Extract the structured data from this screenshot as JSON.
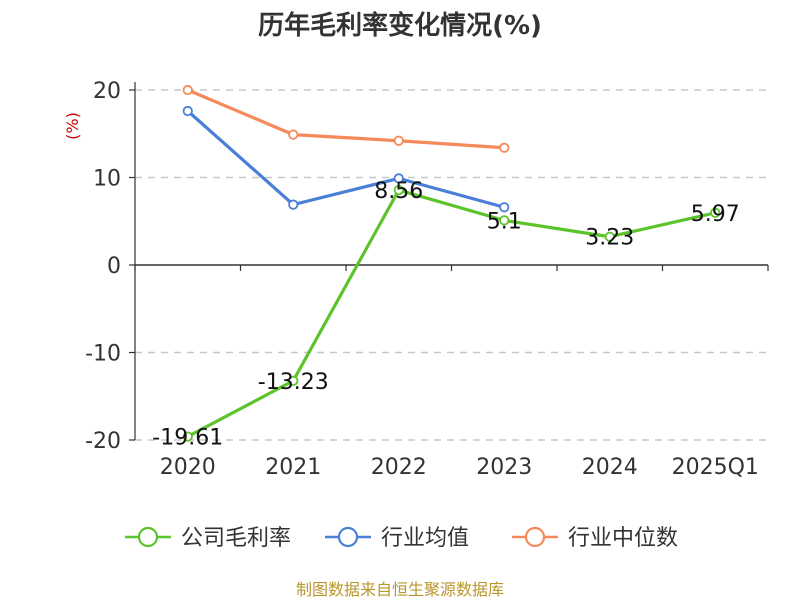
{
  "chart_data": {
    "type": "line",
    "title": "历年毛利率变化情况(%)",
    "ylabel": "(%)",
    "categories": [
      "2020",
      "2021",
      "2022",
      "2023",
      "2024",
      "2025Q1"
    ],
    "y_ticks": [
      "20",
      "10",
      "0",
      "-10",
      "-20"
    ],
    "ylim": [
      -20,
      20
    ],
    "grid": true,
    "legend_position": "bottom",
    "series": [
      {
        "name": "公司毛利率",
        "color": "#5cc42b",
        "values": [
          -19.61,
          -13.23,
          8.56,
          5.1,
          3.23,
          5.97
        ],
        "labels": [
          "-19.61",
          "-13.23",
          "8.56",
          "5.1",
          "3.23",
          "5.97"
        ]
      },
      {
        "name": "行业均值",
        "color": "#4a7fd8",
        "values": [
          17.6,
          6.9,
          9.9,
          6.6,
          null,
          null
        ]
      },
      {
        "name": "行业中位数",
        "color": "#f5895a",
        "values": [
          20.0,
          14.9,
          14.2,
          13.4,
          null,
          null
        ]
      }
    ]
  },
  "source_text": "制图数据来自恒生聚源数据库"
}
